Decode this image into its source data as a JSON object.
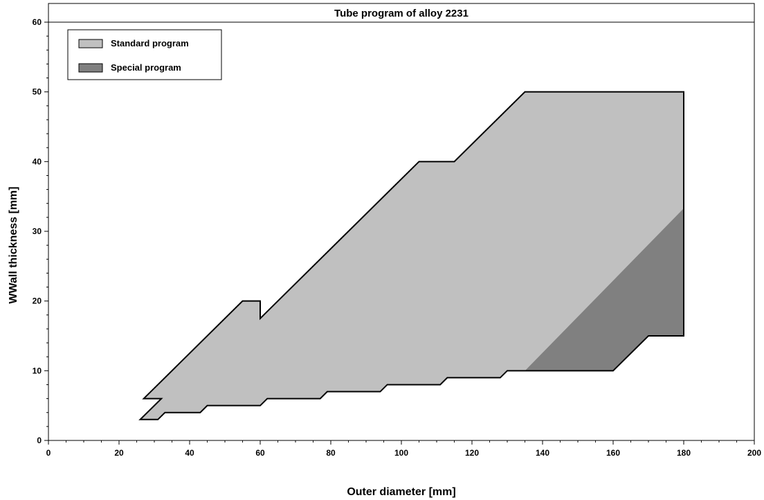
{
  "chart_data": {
    "type": "area",
    "title": "Tube program of alloy 2231",
    "xlabel": "Outer diameter [mm]",
    "ylabel": "WWall thickness [mm]",
    "xlim": [
      0,
      200
    ],
    "ylim": [
      0,
      60
    ],
    "xticks": [
      0,
      20,
      40,
      60,
      80,
      100,
      120,
      140,
      160,
      180,
      200
    ],
    "yticks": [
      0,
      10,
      20,
      30,
      40,
      50,
      60
    ],
    "grid": false,
    "legend_position": "top-left",
    "series": [
      {
        "name": "Standard program",
        "color": "#c0c0c0",
        "polygon": [
          [
            26,
            3
          ],
          [
            31,
            3
          ],
          [
            33,
            4
          ],
          [
            43,
            4
          ],
          [
            45,
            5
          ],
          [
            60,
            5
          ],
          [
            62,
            6
          ],
          [
            77,
            6
          ],
          [
            79,
            7
          ],
          [
            94,
            7
          ],
          [
            96,
            8
          ],
          [
            111,
            8
          ],
          [
            113,
            9
          ],
          [
            128,
            9
          ],
          [
            130,
            10
          ],
          [
            135,
            10
          ],
          [
            180,
            33.3
          ],
          [
            180,
            50
          ],
          [
            135,
            50
          ],
          [
            115,
            40
          ],
          [
            105,
            40
          ],
          [
            60,
            17.5
          ],
          [
            60,
            20
          ],
          [
            55,
            20
          ],
          [
            27,
            6
          ],
          [
            32,
            6
          ]
        ]
      },
      {
        "name": "Special program",
        "color": "#808080",
        "polygon": [
          [
            135,
            10
          ],
          [
            160,
            10
          ],
          [
            170,
            15
          ],
          [
            180,
            15
          ],
          [
            180,
            33.3
          ]
        ]
      }
    ],
    "outline": [
      [
        26,
        3
      ],
      [
        31,
        3
      ],
      [
        33,
        4
      ],
      [
        43,
        4
      ],
      [
        45,
        5
      ],
      [
        60,
        5
      ],
      [
        62,
        6
      ],
      [
        77,
        6
      ],
      [
        79,
        7
      ],
      [
        94,
        7
      ],
      [
        96,
        8
      ],
      [
        111,
        8
      ],
      [
        113,
        9
      ],
      [
        128,
        9
      ],
      [
        130,
        10
      ],
      [
        160,
        10
      ],
      [
        170,
        15
      ],
      [
        180,
        15
      ],
      [
        180,
        50
      ],
      [
        135,
        50
      ],
      [
        115,
        40
      ],
      [
        105,
        40
      ],
      [
        60,
        17.5
      ],
      [
        60,
        20
      ],
      [
        55,
        20
      ],
      [
        27,
        6
      ],
      [
        32,
        6
      ]
    ]
  }
}
